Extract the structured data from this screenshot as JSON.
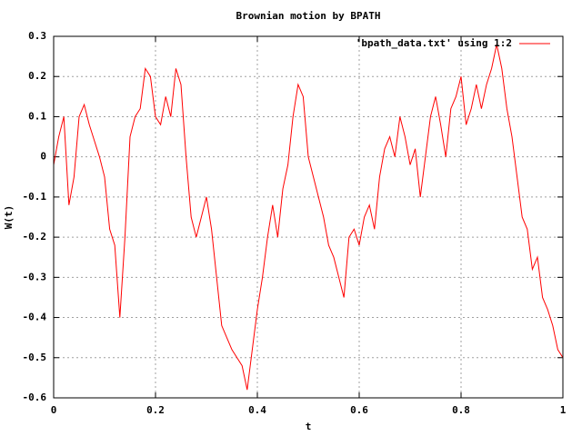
{
  "chart_data": {
    "type": "line",
    "title": "Brownian motion by BPATH",
    "xlabel": "t",
    "ylabel": "W(t)",
    "x": [
      0,
      0.01,
      0.02,
      0.03,
      0.04,
      0.05,
      0.06,
      0.07,
      0.08,
      0.09,
      0.1,
      0.11,
      0.12,
      0.13,
      0.14,
      0.15,
      0.16,
      0.17,
      0.18,
      0.19,
      0.2,
      0.21,
      0.22,
      0.23,
      0.24,
      0.25,
      0.26,
      0.27,
      0.28,
      0.29,
      0.3,
      0.31,
      0.32,
      0.33,
      0.34,
      0.35,
      0.36,
      0.37,
      0.38,
      0.39,
      0.4,
      0.41,
      0.42,
      0.43,
      0.44,
      0.45,
      0.46,
      0.47,
      0.48,
      0.49,
      0.5,
      0.51,
      0.52,
      0.53,
      0.54,
      0.55,
      0.56,
      0.57,
      0.58,
      0.59,
      0.6,
      0.61,
      0.62,
      0.63,
      0.64,
      0.65,
      0.66,
      0.67,
      0.68,
      0.69,
      0.7,
      0.71,
      0.72,
      0.73,
      0.74,
      0.75,
      0.76,
      0.77,
      0.78,
      0.79,
      0.8,
      0.81,
      0.82,
      0.83,
      0.84,
      0.85,
      0.86,
      0.87,
      0.88,
      0.89,
      0.9,
      0.91,
      0.92,
      0.93,
      0.94,
      0.95,
      0.96,
      0.97,
      0.98,
      0.99,
      1
    ],
    "series": [
      {
        "name": "'bpath_data.txt' using 1:2",
        "color": "#ff0000",
        "values": [
          -0.02,
          0.05,
          0.1,
          -0.12,
          -0.05,
          0.1,
          0.13,
          0.08,
          0.04,
          0,
          -0.05,
          -0.18,
          -0.22,
          -0.4,
          -0.2,
          0.05,
          0.1,
          0.12,
          0.22,
          0.2,
          0.1,
          0.08,
          0.15,
          0.1,
          0.22,
          0.18,
          0,
          -0.15,
          -0.2,
          -0.15,
          -0.1,
          -0.18,
          -0.3,
          -0.42,
          -0.45,
          -0.48,
          -0.5,
          -0.52,
          -0.58,
          -0.48,
          -0.38,
          -0.3,
          -0.2,
          -0.12,
          -0.2,
          -0.08,
          -0.02,
          0.1,
          0.18,
          0.15,
          0,
          -0.05,
          -0.1,
          -0.15,
          -0.22,
          -0.25,
          -0.3,
          -0.35,
          -0.2,
          -0.18,
          -0.22,
          -0.15,
          -0.12,
          -0.18,
          -0.05,
          0.02,
          0.05,
          0,
          0.1,
          0.05,
          -0.02,
          0.02,
          -0.1,
          0,
          0.1,
          0.15,
          0.08,
          0,
          0.12,
          0.15,
          0.2,
          0.08,
          0.12,
          0.18,
          0.12,
          0.18,
          0.22,
          0.28,
          0.22,
          0.12,
          0.05,
          -0.05,
          -0.15,
          -0.18,
          -0.28,
          -0.25,
          -0.35,
          -0.38,
          -0.42,
          -0.48,
          -0.5
        ]
      }
    ],
    "xlim": [
      0,
      1
    ],
    "xticks": [
      0,
      0.2,
      0.4,
      0.6,
      0.8,
      1
    ],
    "ylim": [
      -0.6,
      0.3
    ],
    "yticks": [
      0.3,
      0.2,
      0.1,
      0,
      -0.1,
      -0.2,
      -0.3,
      -0.4,
      -0.5,
      -0.6
    ],
    "grid": true,
    "legend": "top-right"
  }
}
